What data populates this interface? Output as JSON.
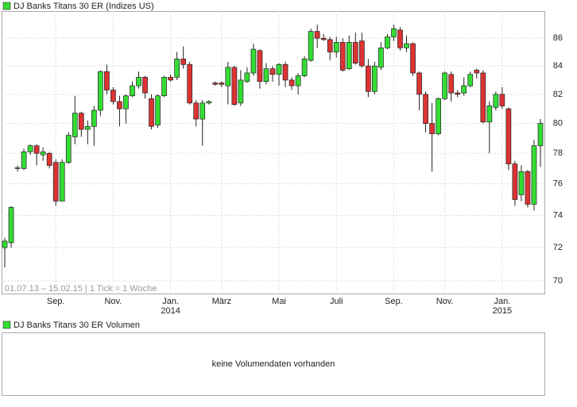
{
  "chart_data": {
    "type": "candlestick",
    "title": "DJ Banks Titans 30 ER (Indizes US)",
    "range_note": "01.07.13 – 15.02.15  |  1 Tick = 1 Woche",
    "up_color": "#33dd33",
    "down_color": "#dd3333",
    "log_scale": true,
    "grid": true,
    "categories": [
      null,
      null,
      null,
      null,
      null,
      null,
      null,
      null,
      "Sep.",
      null,
      null,
      null,
      null,
      null,
      null,
      null,
      null,
      "Nov.",
      null,
      null,
      null,
      null,
      null,
      null,
      null,
      null,
      "Jan.",
      null,
      null,
      null,
      null,
      null,
      null,
      null,
      "März",
      null,
      null,
      null,
      null,
      null,
      null,
      null,
      null,
      "Mai",
      null,
      null,
      null,
      null,
      null,
      null,
      null,
      null,
      "Juli",
      null,
      null,
      null,
      null,
      null,
      null,
      null,
      null,
      "Sep.",
      null,
      null,
      null,
      null,
      null,
      null,
      null,
      "Nov.",
      null,
      null,
      null,
      null,
      null,
      null,
      null,
      null,
      "Jan.",
      null,
      null,
      null,
      null,
      null,
      null
    ],
    "years": [
      null,
      null,
      null,
      null,
      null,
      null,
      null,
      null,
      null,
      null,
      null,
      null,
      null,
      null,
      null,
      null,
      null,
      null,
      null,
      null,
      null,
      null,
      null,
      null,
      null,
      null,
      "2014",
      null,
      null,
      null,
      null,
      null,
      null,
      null,
      null,
      null,
      null,
      null,
      null,
      null,
      null,
      null,
      null,
      null,
      null,
      null,
      null,
      null,
      null,
      null,
      null,
      null,
      null,
      null,
      null,
      null,
      null,
      null,
      null,
      null,
      null,
      null,
      null,
      null,
      null,
      null,
      null,
      null,
      null,
      null,
      null,
      null,
      null,
      null,
      null,
      null,
      null,
      null,
      "2015",
      null,
      null,
      null,
      null,
      null,
      null
    ],
    "open": [
      72.0,
      72.3,
      77.0,
      77.0,
      78.1,
      78.5,
      77.9,
      78.0,
      77.4,
      74.9,
      77.4,
      79.1,
      80.7,
      79.6,
      79.8,
      80.9,
      83.6,
      82.3,
      81.5,
      81.0,
      81.9,
      82.6,
      83.2,
      81.7,
      79.9,
      81.9,
      83.2,
      83.2,
      84.5,
      84.1,
      81.4,
      80.3,
      81.4,
      82.8,
      82.8,
      82.6,
      83.9,
      81.4,
      82.9,
      83.5,
      85.1,
      82.9,
      83.8,
      83.4,
      84.1,
      83.0,
      82.6,
      83.3,
      84.4,
      86.5,
      86.0,
      85.9,
      85.0,
      85.7,
      83.8,
      85.7,
      85.8,
      84.0,
      82.2,
      83.9,
      85.3,
      86.1,
      86.6,
      85.3,
      85.6,
      83.5,
      82.0,
      80.0,
      79.3,
      81.7,
      83.4,
      82.1,
      82.1,
      82.6,
      83.7,
      83.5,
      80.1,
      81.1,
      82.0,
      81.0,
      77.3,
      75.3,
      76.8,
      74.7,
      78.5
    ],
    "high": [
      72.6,
      74.6,
      77.2,
      78.3,
      78.6,
      78.6,
      78.4,
      78.1,
      77.6,
      77.6,
      79.4,
      81.9,
      80.8,
      80.2,
      81.2,
      83.7,
      84.1,
      82.5,
      81.9,
      82.0,
      82.9,
      83.6,
      83.3,
      82.0,
      82.0,
      83.3,
      83.4,
      85.0,
      85.4,
      84.3,
      81.6,
      81.6,
      81.6,
      82.9,
      82.9,
      84.3,
      84.0,
      83.7,
      83.9,
      85.6,
      85.2,
      84.2,
      84.0,
      84.2,
      84.3,
      83.2,
      83.5,
      84.7,
      86.7,
      87.0,
      86.3,
      86.1,
      86.1,
      86.0,
      86.2,
      86.4,
      86.4,
      84.5,
      84.3,
      85.7,
      86.3,
      87.0,
      86.8,
      86.2,
      85.7,
      83.6,
      82.2,
      81.4,
      81.8,
      83.6,
      83.6,
      82.3,
      83.2,
      83.6,
      83.8,
      83.7,
      81.5,
      82.2,
      82.5,
      81.1,
      77.5,
      77.2,
      76.9,
      78.9,
      80.3
    ],
    "low": [
      70.8,
      72.0,
      76.8,
      76.9,
      77.9,
      77.2,
      77.5,
      77.0,
      74.6,
      74.9,
      77.3,
      78.6,
      79.1,
      78.6,
      78.5,
      80.5,
      82.0,
      81.3,
      79.8,
      80.0,
      81.8,
      82.4,
      81.7,
      79.6,
      79.7,
      81.8,
      82.9,
      83.0,
      83.8,
      81.3,
      79.8,
      78.5,
      81.3,
      82.6,
      82.5,
      81.3,
      81.2,
      81.2,
      82.8,
      83.3,
      82.4,
      82.7,
      82.9,
      82.6,
      82.5,
      82.3,
      82.0,
      83.2,
      84.3,
      85.3,
      85.8,
      84.4,
      84.6,
      83.6,
      83.7,
      84.1,
      83.9,
      81.8,
      82.0,
      83.7,
      85.2,
      85.8,
      85.1,
      85.0,
      83.3,
      80.9,
      79.4,
      76.8,
      79.2,
      81.6,
      81.5,
      81.8,
      81.9,
      82.5,
      83.1,
      80.0,
      78.0,
      80.9,
      81.0,
      76.9,
      74.6,
      74.9,
      74.5,
      74.3,
      77.1
    ],
    "close": [
      72.4,
      74.5,
      77.05,
      78.1,
      78.5,
      78.0,
      78.1,
      77.2,
      74.9,
      77.4,
      79.2,
      80.7,
      79.6,
      79.8,
      80.9,
      83.6,
      82.3,
      81.5,
      81.0,
      81.9,
      82.6,
      83.2,
      82.1,
      79.8,
      81.9,
      83.2,
      83.0,
      84.5,
      84.1,
      81.4,
      80.3,
      81.4,
      81.5,
      82.7,
      82.7,
      83.9,
      81.3,
      83.0,
      83.5,
      85.2,
      82.9,
      83.8,
      83.4,
      84.1,
      83.0,
      82.6,
      83.3,
      84.5,
      86.5,
      86.0,
      85.9,
      85.0,
      85.7,
      83.7,
      85.7,
      84.2,
      84.0,
      82.2,
      84.0,
      85.3,
      86.1,
      86.7,
      85.3,
      85.6,
      83.5,
      82.0,
      80.0,
      79.3,
      81.7,
      83.5,
      82.1,
      82.0,
      82.6,
      83.4,
      83.5,
      80.1,
      81.2,
      82.0,
      81.2,
      77.3,
      75.0,
      76.8,
      74.7,
      78.5,
      80.0
    ],
    "ylim": [
      69.25,
      88
    ],
    "yticks": [
      70,
      72,
      74,
      76,
      78,
      80,
      82,
      84,
      86
    ],
    "volume_title": "DJ Banks Titans 30 ER Volumen",
    "volume_note": "keine Volumendaten vorhanden"
  }
}
